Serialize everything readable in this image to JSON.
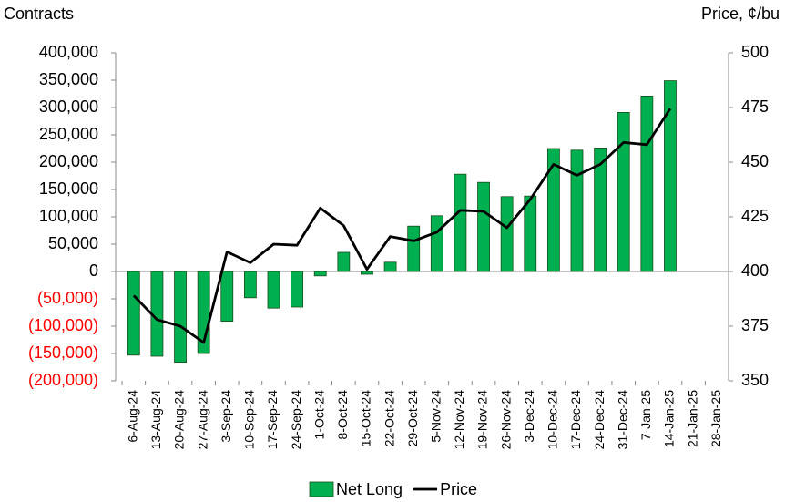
{
  "chart_data": {
    "type": "bar",
    "y_axis_title": "Contracts",
    "y2_axis_title": "Price, ¢/bu",
    "categories": [
      "6-Aug-24",
      "13-Aug-24",
      "20-Aug-24",
      "27-Aug-24",
      "3-Sep-24",
      "10-Sep-24",
      "17-Sep-24",
      "24-Sep-24",
      "1-Oct-24",
      "8-Oct-24",
      "15-Oct-24",
      "22-Oct-24",
      "29-Oct-24",
      "5-Nov-24",
      "12-Nov-24",
      "19-Nov-24",
      "26-Nov-24",
      "3-Dec-24",
      "10-Dec-24",
      "17-Dec-24",
      "24-Dec-24",
      "31-Dec-24",
      "7-Jan-25",
      "14-Jan-25",
      "21-Jan-25",
      "28-Jan-25"
    ],
    "series": [
      {
        "name": "Net Long",
        "type": "bar",
        "color": "#00b050",
        "values": [
          -153000,
          -155000,
          -166000,
          -150000,
          -91000,
          -48000,
          -67000,
          -65000,
          -8000,
          35000,
          -5000,
          17000,
          83000,
          102000,
          178000,
          163000,
          137000,
          138000,
          225000,
          222000,
          226000,
          291000,
          321000,
          349000,
          null,
          null
        ]
      },
      {
        "name": "Price",
        "type": "line",
        "axis": "y2",
        "color": "#000000",
        "values": [
          389,
          378,
          375,
          367.5,
          409,
          404,
          412.5,
          412,
          429,
          421,
          401,
          416,
          414,
          418,
          428,
          427.5,
          420,
          433,
          449,
          444,
          449,
          459,
          458,
          474.5,
          null,
          null
        ]
      }
    ],
    "ylim": [
      -200000,
      400000
    ],
    "yticks": [
      {
        "value": -200000,
        "label": "(200,000)"
      },
      {
        "value": -150000,
        "label": "(150,000)"
      },
      {
        "value": -100000,
        "label": "(100,000)"
      },
      {
        "value": -50000,
        "label": "(50,000)"
      },
      0,
      {
        "value": 50000,
        "label": "50,000"
      },
      {
        "value": 100000,
        "label": "100,000"
      },
      {
        "value": 150000,
        "label": "150,000"
      },
      {
        "value": 200000,
        "label": "200,000"
      },
      {
        "value": 250000,
        "label": "250,000"
      },
      {
        "value": 300000,
        "label": "300,000"
      },
      {
        "value": 350000,
        "label": "350,000"
      },
      {
        "value": 400000,
        "label": "400,000"
      }
    ],
    "negative_label_color": "#ff0000",
    "y2lim": [
      350,
      500
    ],
    "y2ticks": [
      350,
      375,
      400,
      425,
      450,
      475,
      500
    ],
    "grid": false,
    "legend": "bottom"
  }
}
